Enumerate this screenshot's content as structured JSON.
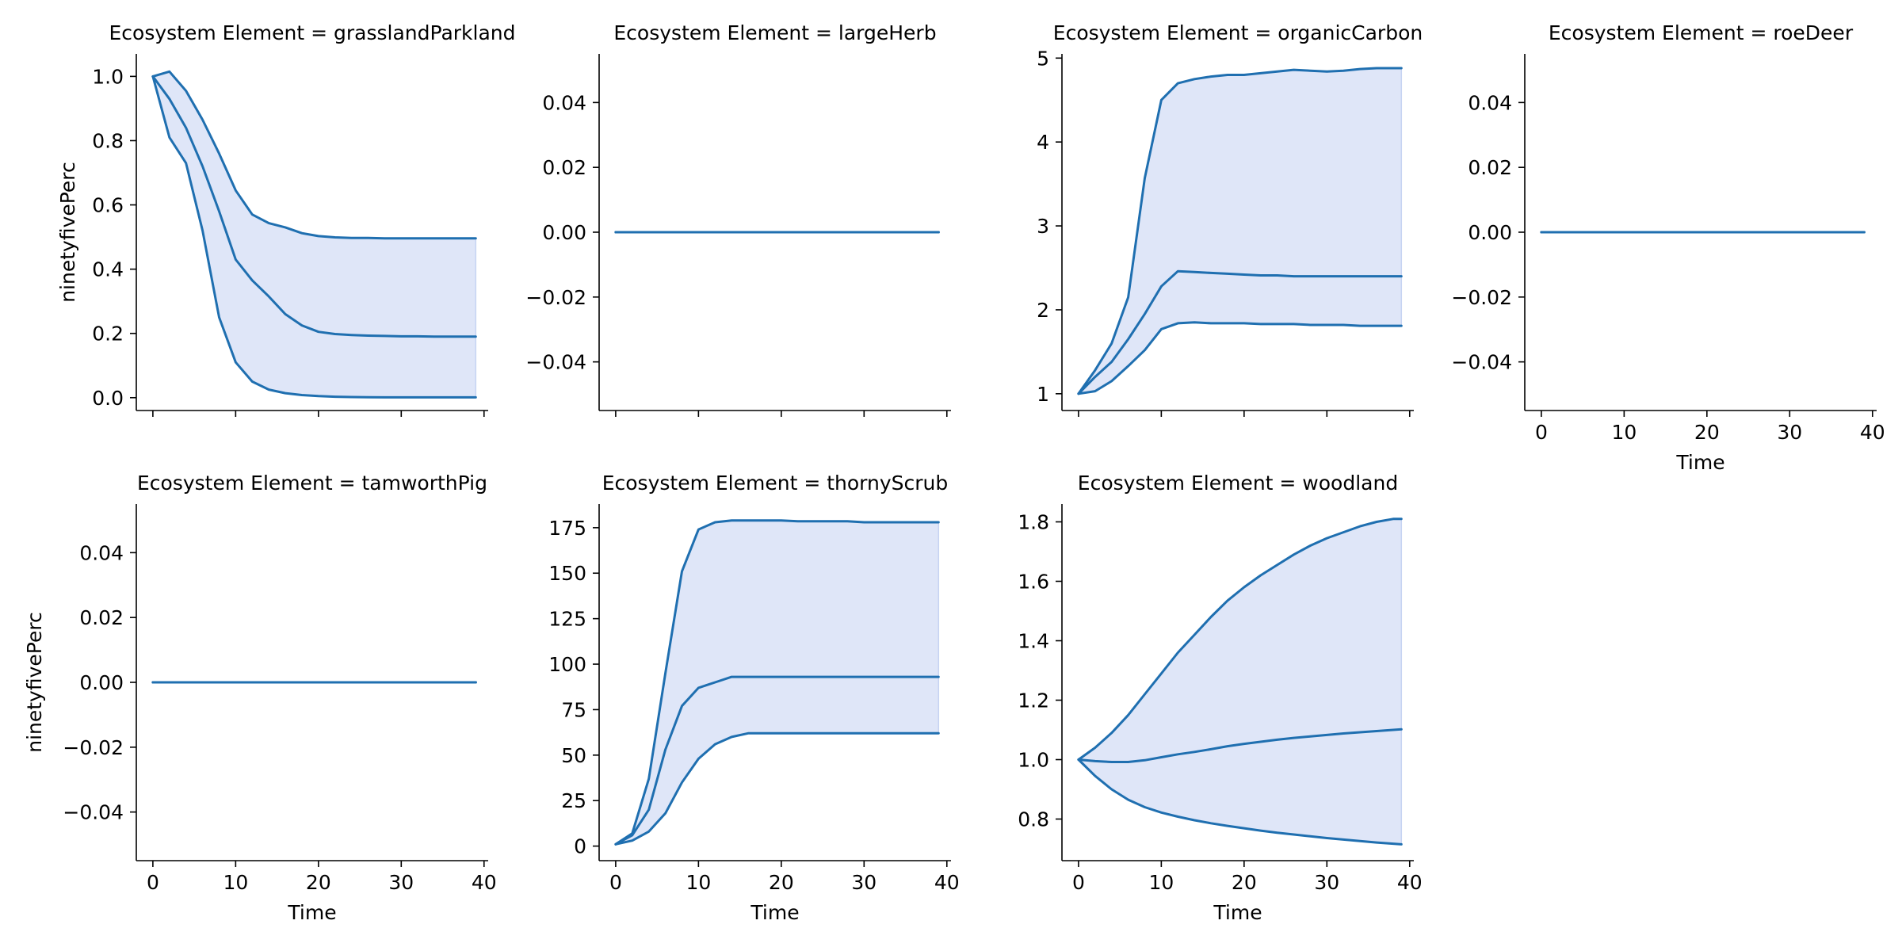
{
  "chart_data": [
    {
      "type": "line",
      "title": "Ecosystem Element = grasslandParkland",
      "xlabel": "",
      "ylabel": "ninetyfivePerc",
      "xlim": [
        -2,
        40.5
      ],
      "ylim": [
        -0.04,
        1.07
      ],
      "xticks": [],
      "yticks": [
        0.0,
        0.2,
        0.4,
        0.6,
        0.8,
        1.0
      ],
      "ytick_labels": [
        "0.0",
        "0.2",
        "0.4",
        "0.6",
        "0.8",
        "1.0"
      ],
      "x": [
        0,
        2,
        4,
        6,
        8,
        10,
        12,
        14,
        16,
        18,
        20,
        22,
        24,
        26,
        28,
        30,
        32,
        34,
        36,
        38,
        39
      ],
      "band_upper": [
        1.0,
        1.015,
        0.955,
        0.865,
        0.76,
        0.645,
        0.57,
        0.543,
        0.53,
        0.512,
        0.503,
        0.499,
        0.497,
        0.497,
        0.496,
        0.496,
        0.496,
        0.496,
        0.496,
        0.496,
        0.496
      ],
      "median": [
        1.0,
        0.93,
        0.84,
        0.72,
        0.58,
        0.43,
        0.365,
        0.315,
        0.26,
        0.225,
        0.205,
        0.198,
        0.195,
        0.193,
        0.192,
        0.191,
        0.191,
        0.19,
        0.19,
        0.19,
        0.19
      ],
      "band_lower": [
        1.0,
        0.81,
        0.73,
        0.52,
        0.25,
        0.11,
        0.05,
        0.025,
        0.014,
        0.008,
        0.005,
        0.003,
        0.002,
        0.0015,
        0.001,
        0.001,
        0.001,
        0.001,
        0.001,
        0.001,
        0.001
      ]
    },
    {
      "type": "line",
      "title": "Ecosystem Element = largeHerb",
      "xlabel": "",
      "ylabel": "",
      "xlim": [
        -2,
        40.5
      ],
      "ylim": [
        -0.055,
        0.055
      ],
      "xticks": [],
      "yticks": [
        -0.04,
        -0.02,
        0.0,
        0.02,
        0.04
      ],
      "ytick_labels": [
        "−0.04",
        "−0.02",
        "0.00",
        "0.02",
        "0.04"
      ],
      "x": [
        0,
        39
      ],
      "band_upper": [
        0,
        0
      ],
      "median": [
        0,
        0
      ],
      "band_lower": [
        0,
        0
      ]
    },
    {
      "type": "line",
      "title": "Ecosystem Element = organicCarbon",
      "xlabel": "",
      "ylabel": "",
      "xlim": [
        -2,
        40.5
      ],
      "ylim": [
        0.8,
        5.05
      ],
      "xticks": [],
      "yticks": [
        1,
        2,
        3,
        4,
        5
      ],
      "ytick_labels": [
        "1",
        "2",
        "3",
        "4",
        "5"
      ],
      "x": [
        0,
        2,
        4,
        6,
        8,
        10,
        12,
        14,
        16,
        18,
        20,
        22,
        24,
        26,
        28,
        30,
        32,
        34,
        36,
        38,
        39
      ],
      "band_upper": [
        1.0,
        1.28,
        1.6,
        2.15,
        3.57,
        4.5,
        4.7,
        4.75,
        4.78,
        4.8,
        4.8,
        4.82,
        4.84,
        4.86,
        4.85,
        4.84,
        4.85,
        4.87,
        4.88,
        4.88,
        4.88
      ],
      "median": [
        1.0,
        1.2,
        1.38,
        1.65,
        1.95,
        2.28,
        2.46,
        2.45,
        2.44,
        2.43,
        2.42,
        2.41,
        2.41,
        2.4,
        2.4,
        2.4,
        2.4,
        2.4,
        2.4,
        2.4,
        2.4
      ],
      "band_lower": [
        1.0,
        1.03,
        1.15,
        1.33,
        1.52,
        1.77,
        1.84,
        1.85,
        1.84,
        1.84,
        1.84,
        1.83,
        1.83,
        1.83,
        1.82,
        1.82,
        1.82,
        1.81,
        1.81,
        1.81,
        1.81
      ]
    },
    {
      "type": "line",
      "title": "Ecosystem Element = roeDeer",
      "xlabel": "Time",
      "ylabel": "",
      "xlim": [
        -2,
        40.5
      ],
      "ylim": [
        -0.055,
        0.055
      ],
      "xticks": [
        0,
        10,
        20,
        30,
        40
      ],
      "yticks": [
        -0.04,
        -0.02,
        0.0,
        0.02,
        0.04
      ],
      "ytick_labels": [
        "−0.04",
        "−0.02",
        "0.00",
        "0.02",
        "0.04"
      ],
      "x": [
        0,
        39
      ],
      "band_upper": [
        0,
        0
      ],
      "median": [
        0,
        0
      ],
      "band_lower": [
        0,
        0
      ]
    },
    {
      "type": "line",
      "title": "Ecosystem Element = tamworthPig",
      "xlabel": "Time",
      "ylabel": "ninetyfivePerc",
      "xlim": [
        -2,
        40.5
      ],
      "ylim": [
        -0.055,
        0.055
      ],
      "xticks": [
        0,
        10,
        20,
        30,
        40
      ],
      "yticks": [
        -0.04,
        -0.02,
        0.0,
        0.02,
        0.04
      ],
      "ytick_labels": [
        "−0.04",
        "−0.02",
        "0.00",
        "0.02",
        "0.04"
      ],
      "x": [
        0,
        39
      ],
      "band_upper": [
        0,
        0
      ],
      "median": [
        0,
        0
      ],
      "band_lower": [
        0,
        0
      ]
    },
    {
      "type": "line",
      "title": "Ecosystem Element = thornyScrub",
      "xlabel": "Time",
      "ylabel": "",
      "xlim": [
        -2,
        40.5
      ],
      "ylim": [
        -8,
        188
      ],
      "xticks": [
        0,
        10,
        20,
        30,
        40
      ],
      "yticks": [
        0,
        25,
        50,
        75,
        100,
        125,
        150,
        175
      ],
      "ytick_labels": [
        "0",
        "25",
        "50",
        "75",
        "100",
        "125",
        "150",
        "175"
      ],
      "x": [
        0,
        2,
        4,
        6,
        8,
        10,
        12,
        14,
        16,
        18,
        20,
        22,
        24,
        26,
        28,
        30,
        32,
        34,
        36,
        38,
        39
      ],
      "band_upper": [
        1,
        7,
        37,
        95,
        151,
        174,
        178,
        179,
        179,
        179,
        179,
        178.5,
        178.5,
        178.5,
        178.5,
        178,
        178,
        178,
        178,
        178,
        178
      ],
      "median": [
        1,
        6,
        20,
        53,
        77,
        87,
        90,
        93,
        93,
        93,
        93,
        93,
        93,
        93,
        93,
        93,
        93,
        93,
        93,
        93,
        93
      ],
      "band_lower": [
        1,
        3,
        8,
        18,
        35,
        48,
        56,
        60,
        62,
        62,
        62,
        62,
        62,
        62,
        62,
        62,
        62,
        62,
        62,
        62,
        62
      ]
    },
    {
      "type": "line",
      "title": "Ecosystem Element = woodland",
      "xlabel": "Time",
      "ylabel": "",
      "xlim": [
        -2,
        40.5
      ],
      "ylim": [
        0.66,
        1.86
      ],
      "xticks": [
        0,
        10,
        20,
        30,
        40
      ],
      "yticks": [
        0.8,
        1.0,
        1.2,
        1.4,
        1.6,
        1.8
      ],
      "ytick_labels": [
        "0.8",
        "1.0",
        "1.2",
        "1.4",
        "1.6",
        "1.8"
      ],
      "x": [
        0,
        2,
        4,
        6,
        8,
        10,
        12,
        14,
        16,
        18,
        20,
        22,
        24,
        26,
        28,
        30,
        32,
        34,
        36,
        38,
        39
      ],
      "band_upper": [
        1.0,
        1.04,
        1.09,
        1.15,
        1.22,
        1.29,
        1.36,
        1.42,
        1.48,
        1.535,
        1.58,
        1.62,
        1.655,
        1.69,
        1.72,
        1.745,
        1.765,
        1.785,
        1.8,
        1.81,
        1.81
      ],
      "median": [
        1.0,
        0.995,
        0.992,
        0.992,
        0.998,
        1.008,
        1.018,
        1.026,
        1.035,
        1.045,
        1.053,
        1.06,
        1.067,
        1.073,
        1.078,
        1.083,
        1.088,
        1.092,
        1.096,
        1.1,
        1.102
      ],
      "band_lower": [
        1.0,
        0.945,
        0.9,
        0.865,
        0.84,
        0.822,
        0.808,
        0.796,
        0.786,
        0.777,
        0.769,
        0.761,
        0.754,
        0.748,
        0.742,
        0.736,
        0.731,
        0.726,
        0.721,
        0.717,
        0.715
      ]
    }
  ]
}
